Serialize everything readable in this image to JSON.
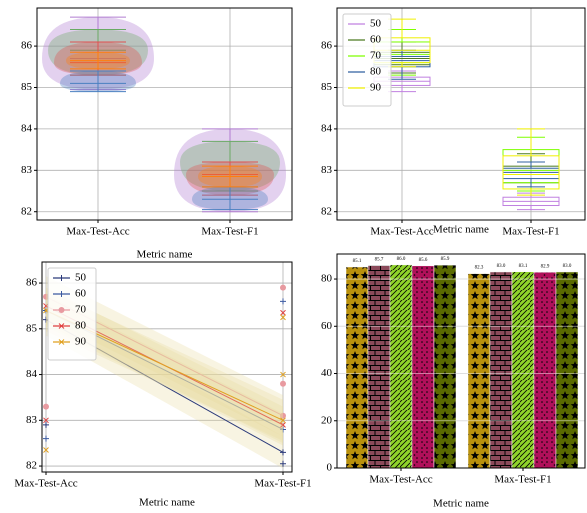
{
  "chart_data": [
    {
      "type": "violin",
      "categories": [
        "Max-Test-Acc",
        "Max-Test-F1"
      ],
      "xlabel": "Metric name",
      "ylim": [
        81.8,
        86.92
      ],
      "yticks": [
        82,
        83,
        84,
        85,
        86
      ],
      "grid": true,
      "series": [
        {
          "color": "#b07cd0",
          "values": [
            85.7,
            82.9
          ],
          "mins": [
            84.95,
            82.0
          ],
          "maxs": [
            86.7,
            84.0
          ]
        },
        {
          "color": "#6aaa64",
          "values": [
            85.9,
            83.2
          ],
          "mins": [
            85.3,
            82.5
          ],
          "maxs": [
            86.4,
            83.7
          ]
        },
        {
          "color": "#e05050",
          "values": [
            85.6,
            82.9
          ],
          "mins": [
            85.3,
            82.4
          ],
          "maxs": [
            86.1,
            83.2
          ]
        },
        {
          "color": "#4a7fc0",
          "values": [
            85.1,
            82.3
          ],
          "mins": [
            84.9,
            82.05
          ],
          "maxs": [
            85.4,
            82.6
          ]
        },
        {
          "color": "#ff7f0e",
          "values": [
            85.65,
            82.85
          ],
          "mins": [
            85.45,
            82.6
          ],
          "maxs": [
            85.85,
            83.1
          ]
        }
      ]
    },
    {
      "type": "box",
      "categories": [
        "Max-Test-Acc",
        "Max-Test-F1"
      ],
      "xlabel": "Metric name",
      "ylim": [
        81.8,
        86.92
      ],
      "yticks": [
        82,
        83,
        84,
        85,
        86
      ],
      "grid": true,
      "legend": "upper left",
      "series": [
        {
          "name": "50",
          "color": "#c080e0",
          "whislo": [
            84.9,
            82.05
          ],
          "q1": [
            85.05,
            82.15
          ],
          "values": [
            85.15,
            82.25
          ],
          "q3": [
            85.25,
            82.35
          ],
          "whishi": [
            85.4,
            82.45
          ]
        },
        {
          "name": "60",
          "color": "#4c7a20",
          "whislo": [
            85.35,
            82.5
          ],
          "q1": [
            85.55,
            82.7
          ],
          "values": [
            85.7,
            82.9
          ],
          "q3": [
            85.85,
            83.1
          ],
          "whishi": [
            86.1,
            83.4
          ]
        },
        {
          "name": "70",
          "color": "#7fff00",
          "whislo": [
            85.3,
            82.5
          ],
          "q1": [
            85.6,
            82.7
          ],
          "values": [
            85.8,
            83.0
          ],
          "q3": [
            86.1,
            83.5
          ],
          "whishi": [
            86.4,
            83.8
          ]
        },
        {
          "name": "80",
          "color": "#3060a0",
          "whislo": [
            85.2,
            82.6
          ],
          "q1": [
            85.5,
            82.8
          ],
          "values": [
            85.65,
            82.95
          ],
          "q3": [
            85.75,
            83.05
          ],
          "whishi": [
            85.9,
            83.2
          ]
        },
        {
          "name": "90",
          "color": "#f0f000",
          "whislo": [
            85.5,
            82.4
          ],
          "q1": [
            85.6,
            82.55
          ],
          "values": [
            85.9,
            82.9
          ],
          "q3": [
            86.2,
            83.35
          ],
          "whishi": [
            86.65,
            84.0
          ]
        }
      ]
    },
    {
      "type": "line",
      "categories": [
        "Max-Test-Acc",
        "Max-Test-F1"
      ],
      "xlabel": "Metric name",
      "ylim": [
        81.87,
        86.46
      ],
      "yticks": [
        82,
        83,
        84,
        85,
        86
      ],
      "grid": true,
      "legend": "upper left",
      "series": [
        {
          "name": "50",
          "color": "#2b3a7a",
          "marker": "+",
          "values": [
            85.2,
            82.3
          ],
          "spread": 0.35,
          "scatter": [
            [
              82.9
            ],
            [
              82.05
            ]
          ]
        },
        {
          "name": "60",
          "color": "#3b5aa0",
          "marker": "+",
          "values": [
            85.4,
            82.8
          ],
          "spread": 0.35,
          "scatter": [
            [
              82.6
            ],
            [
              85.6
            ]
          ]
        },
        {
          "name": "70",
          "color": "#e89aa0",
          "marker": "o",
          "values": [
            85.7,
            83.1
          ],
          "spread": 0.45,
          "scatter": [
            [
              83.3
            ],
            [
              85.9,
              83.8
            ]
          ]
        },
        {
          "name": "80",
          "color": "#e04040",
          "marker": "x",
          "values": [
            85.5,
            82.9
          ],
          "spread": 0.4,
          "scatter": [
            [
              83.0
            ],
            [
              85.35
            ]
          ]
        },
        {
          "name": "90",
          "color": "#e0a020",
          "marker": "x",
          "values": [
            85.4,
            83.0
          ],
          "spread": 0.45,
          "scatter": [
            [
              82.35
            ],
            [
              85.25,
              84.0
            ]
          ]
        }
      ]
    },
    {
      "type": "bar",
      "categories": [
        "Max-Test-Acc",
        "Max-Test-F1"
      ],
      "xlabel": "Metric name",
      "ylim": [
        0,
        90.6
      ],
      "yticks": [
        0,
        20,
        40,
        60,
        80
      ],
      "grid": true,
      "series": [
        {
          "color": "#b8900c",
          "hatch": "stars",
          "values": [
            85.1,
            82.3
          ],
          "value_labels": [
            "85.1",
            "82.3"
          ]
        },
        {
          "color": "#8b4a5a",
          "hatch": "bricks",
          "values": [
            85.7,
            83.0
          ],
          "value_labels": [
            "85.7",
            "83.0"
          ]
        },
        {
          "color": "#8fd32a",
          "hatch": "diagonal",
          "values": [
            86.0,
            83.1
          ],
          "value_labels": [
            "86.0",
            "83.1"
          ]
        },
        {
          "color": "#b0105a",
          "hatch": "dots",
          "values": [
            85.6,
            82.9
          ],
          "value_labels": [
            "85.6",
            "82.9"
          ]
        },
        {
          "color": "#5a6a00",
          "hatch": "stars",
          "values": [
            85.9,
            83.0
          ],
          "value_labels": [
            "85.9",
            "83.0"
          ]
        }
      ]
    }
  ]
}
